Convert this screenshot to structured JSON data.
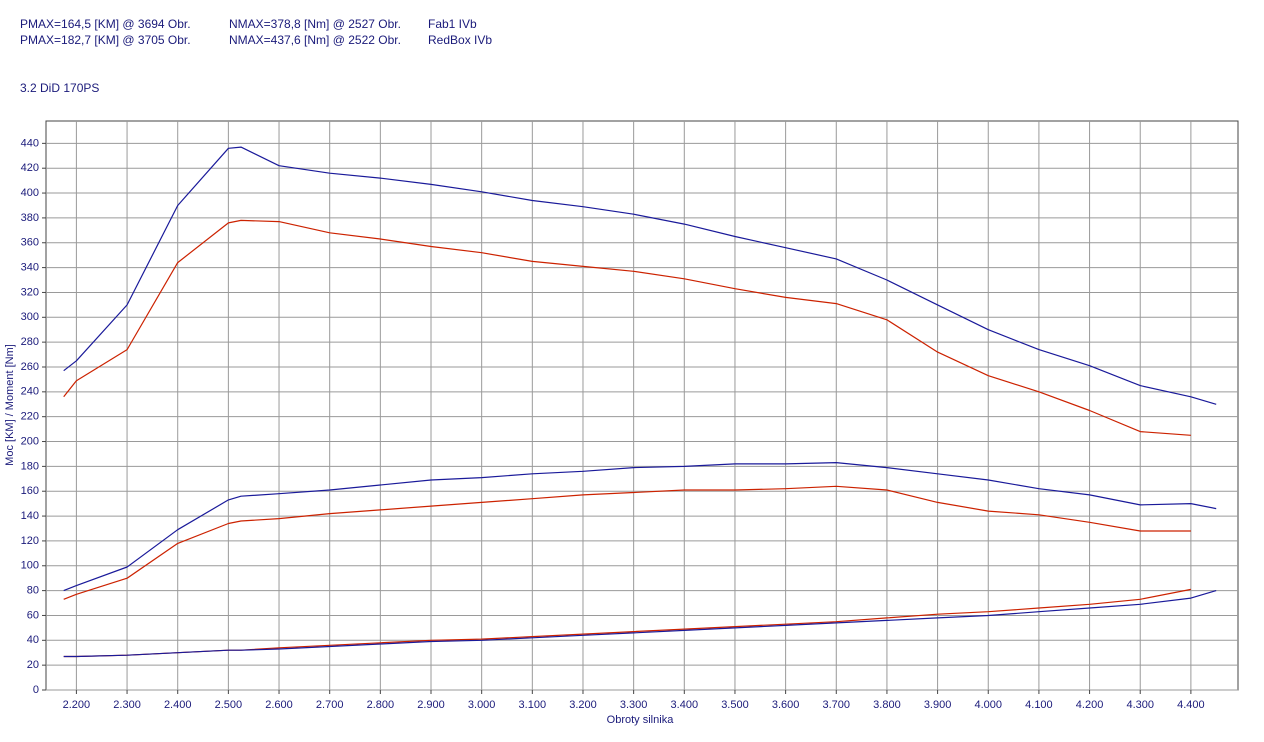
{
  "chart_data": {
    "type": "line",
    "subtitle": "3.2 DiD 170PS",
    "x_label": "Obroty silnika",
    "y_label": "Moc [KM] / Moment [Nm]",
    "grid": true,
    "x": [
      2175,
      2200,
      2300,
      2400,
      2500,
      2525,
      2600,
      2700,
      2800,
      2900,
      3000,
      3100,
      3200,
      3300,
      3400,
      3500,
      3600,
      3700,
      3800,
      3900,
      4000,
      4100,
      4200,
      4300,
      4400,
      4450
    ],
    "series": [
      {
        "name": "Fab1 IVb",
        "color": "#cc2200",
        "pmax": "PMAX=164,5 [KM] @ 3694 Obr.",
        "nmax": "NMAX=378,8 [Nm] @ 2527 Obr.",
        "torque": [
          236,
          249,
          274,
          344,
          376,
          378,
          377,
          368,
          363,
          357,
          352,
          345,
          341,
          337,
          331,
          323,
          316,
          311,
          298,
          272,
          253,
          240,
          225,
          208,
          205,
          null
        ],
        "power": [
          73,
          77,
          90,
          118,
          134,
          136,
          138,
          142,
          145,
          148,
          151,
          154,
          157,
          159,
          161,
          161,
          162,
          164,
          161,
          151,
          144,
          141,
          135,
          128,
          128,
          null
        ],
        "loss": [
          27,
          27,
          28,
          30,
          32,
          32,
          34,
          36,
          38,
          40,
          41,
          43,
          45,
          47,
          49,
          51,
          53,
          55,
          58,
          61,
          63,
          66,
          69,
          73,
          81,
          null
        ]
      },
      {
        "name": "RedBox IVb",
        "color": "#1a1a9a",
        "pmax": "PMAX=182,7 [KM] @ 3705 Obr.",
        "nmax": "NMAX=437,6 [Nm] @ 2522 Obr.",
        "torque": [
          257,
          265,
          310,
          390,
          436,
          437,
          422,
          416,
          412,
          407,
          401,
          394,
          389,
          383,
          375,
          365,
          356,
          347,
          330,
          310,
          290,
          274,
          261,
          245,
          236,
          230
        ],
        "power": [
          80,
          84,
          99,
          129,
          153,
          156,
          158,
          161,
          165,
          169,
          171,
          174,
          176,
          179,
          180,
          182,
          182,
          183,
          179,
          174,
          169,
          162,
          157,
          149,
          150,
          146
        ],
        "loss": [
          27,
          27,
          28,
          30,
          32,
          32,
          33,
          35,
          37,
          39,
          40,
          42,
          44,
          46,
          48,
          50,
          52,
          54,
          56,
          58,
          60,
          63,
          66,
          69,
          74,
          80
        ]
      }
    ],
    "xlim": [
      2140,
      4493
    ],
    "ylim": [
      0,
      458
    ],
    "xticks": [
      {
        "value": 2200,
        "label": "2.200"
      },
      {
        "value": 2300,
        "label": "2.300"
      },
      {
        "value": 2400,
        "label": "2.400"
      },
      {
        "value": 2500,
        "label": "2.500"
      },
      {
        "value": 2600,
        "label": "2.600"
      },
      {
        "value": 2700,
        "label": "2.700"
      },
      {
        "value": 2800,
        "label": "2.800"
      },
      {
        "value": 2900,
        "label": "2.900"
      },
      {
        "value": 3000,
        "label": "3.000"
      },
      {
        "value": 3100,
        "label": "3.100"
      },
      {
        "value": 3200,
        "label": "3.200"
      },
      {
        "value": 3300,
        "label": "3.300"
      },
      {
        "value": 3400,
        "label": "3.400"
      },
      {
        "value": 3500,
        "label": "3.500"
      },
      {
        "value": 3600,
        "label": "3.600"
      },
      {
        "value": 3700,
        "label": "3.700"
      },
      {
        "value": 3800,
        "label": "3.800"
      },
      {
        "value": 3900,
        "label": "3.900"
      },
      {
        "value": 4000,
        "label": "4.000"
      },
      {
        "value": 4100,
        "label": "4.100"
      },
      {
        "value": 4200,
        "label": "4.200"
      },
      {
        "value": 4300,
        "label": "4.300"
      },
      {
        "value": 4400,
        "label": "4.400"
      }
    ],
    "yticks": [
      0,
      20,
      40,
      60,
      80,
      100,
      120,
      140,
      160,
      180,
      200,
      220,
      240,
      260,
      280,
      300,
      320,
      340,
      360,
      380,
      400,
      420,
      440
    ]
  }
}
